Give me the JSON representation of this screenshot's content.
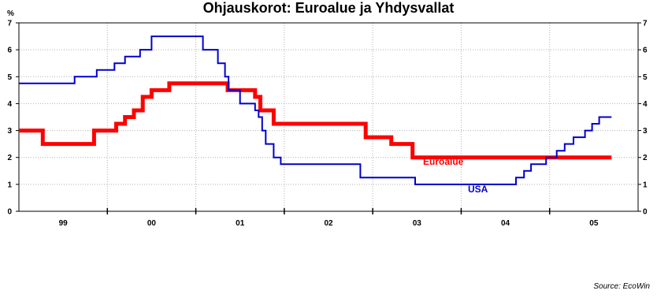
{
  "chart_data": {
    "type": "line",
    "title": "Ohjauskorot: Euroalue ja Yhdysvallat",
    "ylabel": "%",
    "ylim": [
      0,
      7
    ],
    "yticks": [
      "0",
      "1",
      "2",
      "3",
      "4",
      "5",
      "6",
      "7"
    ],
    "xlim": [
      1999.0,
      2006.0
    ],
    "categories": [
      "99",
      "00",
      "01",
      "02",
      "03",
      "04",
      "05"
    ],
    "grid": true,
    "source": "Source: EcoWin",
    "series": [
      {
        "name": "Euroalue",
        "color": "#ff0000",
        "step": true,
        "x": [
          1999.0,
          1999.27,
          1999.85,
          2000.1,
          2000.2,
          2000.3,
          2000.4,
          2000.5,
          2000.7,
          2000.82,
          2001.36,
          2001.67,
          2001.73,
          2001.88,
          2002.92,
          2003.21,
          2003.45,
          2005.7
        ],
        "y": [
          3.0,
          2.5,
          3.0,
          3.25,
          3.5,
          3.75,
          4.25,
          4.5,
          4.75,
          4.75,
          4.5,
          4.25,
          3.75,
          3.25,
          2.75,
          2.5,
          2.0,
          2.0
        ]
      },
      {
        "name": "USA",
        "color": "#0000cc",
        "step": true,
        "x": [
          1999.0,
          1999.47,
          1999.63,
          1999.88,
          2000.08,
          2000.2,
          2000.37,
          2000.5,
          2001.0,
          2001.08,
          2001.25,
          2001.33,
          2001.37,
          2001.5,
          2001.67,
          2001.71,
          2001.75,
          2001.79,
          2001.88,
          2001.96,
          2002.86,
          2003.48,
          2004.5,
          2004.62,
          2004.71,
          2004.79,
          2004.96,
          2005.08,
          2005.17,
          2005.27,
          2005.4,
          2005.48,
          2005.56,
          2005.65,
          2005.7
        ],
        "y": [
          4.75,
          4.75,
          5.0,
          5.25,
          5.5,
          5.75,
          6.0,
          6.5,
          6.5,
          6.0,
          5.5,
          5.0,
          4.5,
          4.0,
          3.75,
          3.5,
          3.0,
          2.5,
          2.0,
          1.75,
          1.25,
          1.0,
          1.0,
          1.25,
          1.5,
          1.75,
          2.0,
          2.25,
          2.5,
          2.75,
          3.0,
          3.25,
          3.5,
          3.5,
          3.5
        ]
      }
    ]
  }
}
